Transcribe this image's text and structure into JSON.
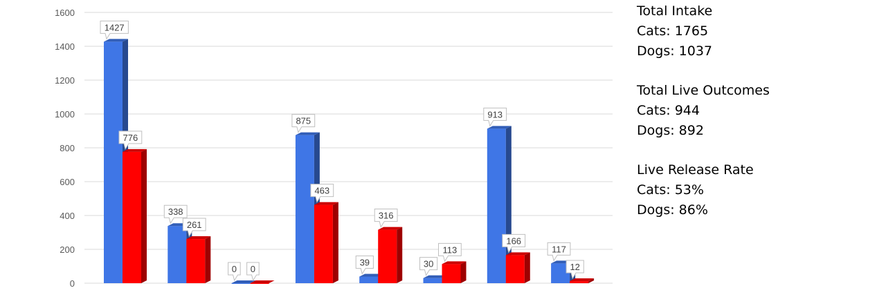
{
  "chart_data": {
    "type": "bar",
    "title": "",
    "xlabel": "",
    "ylabel": "",
    "ylim": [
      0,
      1600
    ],
    "yticks": [
      0,
      200,
      400,
      600,
      800,
      1000,
      1200,
      1400,
      1600
    ],
    "grid": true,
    "series": [
      {
        "color": "#3F76E6",
        "values": [
          1427,
          338,
          0,
          875,
          39,
          30,
          913,
          117
        ]
      },
      {
        "color": "#FF0000",
        "values": [
          776,
          261,
          0,
          463,
          316,
          113,
          166,
          12
        ]
      }
    ]
  },
  "stats": {
    "groups": [
      {
        "heading": "Total Intake",
        "lines": [
          "Cats: 1765",
          "Dogs: 1037"
        ]
      },
      {
        "heading": "Total Live Outcomes",
        "lines": [
          "Cats: 944",
          "Dogs: 892"
        ]
      },
      {
        "heading": "Live Release Rate",
        "lines": [
          "Cats: 53%",
          "Dogs: 86%"
        ]
      }
    ]
  }
}
